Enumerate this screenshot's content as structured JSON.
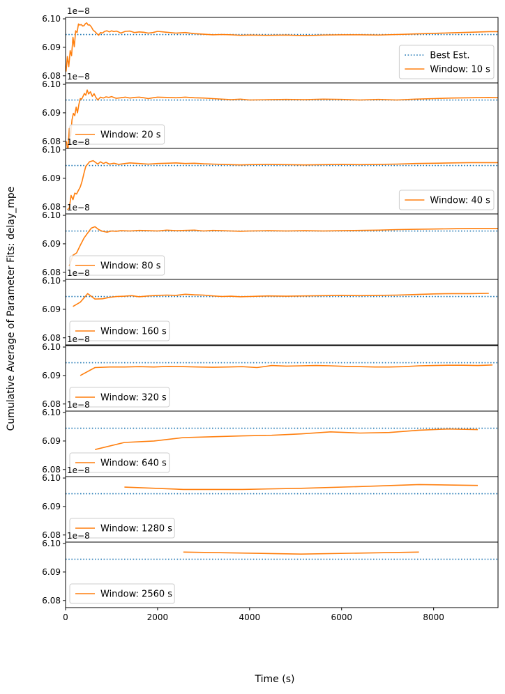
{
  "figure": {
    "ylabel": "Cumulative Average of Parameter Fits: delay_mpe",
    "xlabel": "Time (s)",
    "offset_text": "1e−8",
    "colors": {
      "best": "#1f77b4",
      "window": "#ff7f0e",
      "axes": "#000000"
    }
  },
  "chart_data": {
    "type": "line",
    "xlim": [
      0,
      9400
    ],
    "ylim": [
      6.0775,
      6.1005
    ],
    "y_scale_factor": "1e-8",
    "x_ticks": [
      0,
      2000,
      4000,
      6000,
      8000
    ],
    "x_tick_labels": [
      "0",
      "2000",
      "4000",
      "6000",
      "8000"
    ],
    "y_ticks": [
      6.08,
      6.09,
      6.1
    ],
    "y_tick_labels": [
      "6.08",
      "6.09",
      "6.10"
    ],
    "best_estimate": 6.0945,
    "panels": [
      {
        "legend_loc": "right",
        "legend": [
          {
            "label": "Best Est.",
            "style": "dotted"
          },
          {
            "label": "Window: 10 s",
            "style": "solid"
          }
        ],
        "series": {
          "name": "Window: 10 s",
          "x": [
            10,
            40,
            70,
            100,
            130,
            160,
            190,
            220,
            250,
            280,
            310,
            340,
            370,
            400,
            430,
            460,
            490,
            520,
            560,
            600,
            640,
            680,
            720,
            760,
            800,
            850,
            900,
            950,
            1000,
            1050,
            1100,
            1150,
            1200,
            1300,
            1400,
            1500,
            1600,
            1700,
            1800,
            1900,
            2000,
            2200,
            2400,
            2600,
            2800,
            3000,
            3200,
            3400,
            3600,
            3800,
            4000,
            4400,
            4800,
            5200,
            5600,
            6000,
            6400,
            6800,
            7200,
            7600,
            8000,
            8400,
            8800,
            9200,
            9400
          ],
          "y": [
            6.0815,
            6.0868,
            6.0832,
            6.0888,
            6.0871,
            6.0935,
            6.0902,
            6.0958,
            6.0952,
            6.0982,
            6.0978,
            6.098,
            6.0975,
            6.0976,
            6.0983,
            6.0986,
            6.0978,
            6.0979,
            6.0972,
            6.096,
            6.0955,
            6.0948,
            6.0942,
            6.0952,
            6.095,
            6.0956,
            6.0958,
            6.0954,
            6.0958,
            6.0955,
            6.0957,
            6.0954,
            6.095,
            6.0956,
            6.0957,
            6.0952,
            6.0954,
            6.0953,
            6.095,
            6.0952,
            6.0956,
            6.0953,
            6.095,
            6.0952,
            6.0948,
            6.0946,
            6.0944,
            6.0945,
            6.0944,
            6.0942,
            6.0943,
            6.0942,
            6.0943,
            6.0941,
            6.0943,
            6.0944,
            6.0944,
            6.0943,
            6.0945,
            6.0947,
            6.0949,
            6.0951,
            6.0953,
            6.0955,
            6.0955
          ]
        }
      },
      {
        "legend_loc": "lower left",
        "legend": [
          {
            "label": "Window: 20 s",
            "style": "solid"
          }
        ],
        "series": {
          "name": "Window: 20 s",
          "x": [
            20,
            50,
            80,
            110,
            140,
            170,
            200,
            230,
            260,
            290,
            320,
            350,
            380,
            410,
            440,
            470,
            500,
            540,
            580,
            620,
            660,
            700,
            760,
            820,
            880,
            940,
            1000,
            1100,
            1200,
            1300,
            1400,
            1500,
            1600,
            1700,
            1800,
            1900,
            2000,
            2200,
            2400,
            2600,
            2800,
            3000,
            3200,
            3400,
            3600,
            3800,
            4000,
            4400,
            4800,
            5200,
            5600,
            6000,
            6400,
            6800,
            7200,
            7600,
            8000,
            8400,
            8800,
            9200,
            9400
          ],
          "y": [
            6.08,
            6.076,
            6.0845,
            6.0818,
            6.0875,
            6.0898,
            6.089,
            6.092,
            6.09,
            6.093,
            6.095,
            6.0948,
            6.0958,
            6.0968,
            6.0962,
            6.098,
            6.0966,
            6.0974,
            6.0958,
            6.0967,
            6.0954,
            6.0945,
            6.0955,
            6.0952,
            6.0956,
            6.0954,
            6.0957,
            6.0951,
            6.0953,
            6.0955,
            6.0952,
            6.0954,
            6.0955,
            6.0953,
            6.095,
            6.0953,
            6.0955,
            6.0954,
            6.0953,
            6.0955,
            6.0953,
            6.0952,
            6.095,
            6.0948,
            6.0946,
            6.0948,
            6.0945,
            6.0946,
            6.0947,
            6.0946,
            6.0948,
            6.0947,
            6.0945,
            6.0947,
            6.0945,
            6.0948,
            6.095,
            6.0952,
            6.0953,
            6.0954,
            6.0953
          ]
        }
      },
      {
        "legend_loc": "lower right",
        "legend": [
          {
            "label": "Window: 40 s",
            "style": "solid"
          }
        ],
        "series": {
          "name": "Window: 40 s",
          "x": [
            40,
            80,
            120,
            160,
            200,
            240,
            280,
            320,
            360,
            400,
            440,
            480,
            520,
            560,
            600,
            650,
            700,
            760,
            820,
            880,
            950,
            1050,
            1150,
            1250,
            1400,
            1600,
            1800,
            2000,
            2200,
            2400,
            2600,
            2800,
            3000,
            3200,
            3400,
            3600,
            3800,
            4000,
            4400,
            4800,
            5200,
            5600,
            6000,
            6400,
            6800,
            7200,
            7600,
            8000,
            8400,
            8800,
            9200,
            9400
          ],
          "y": [
            6.079,
            6.0795,
            6.084,
            6.0825,
            6.0848,
            6.0845,
            6.0858,
            6.087,
            6.089,
            6.0918,
            6.0942,
            6.095,
            6.0958,
            6.096,
            6.0962,
            6.0956,
            6.095,
            6.0958,
            6.0952,
            6.0956,
            6.095,
            6.0953,
            6.0949,
            6.0951,
            6.0954,
            6.0952,
            6.095,
            6.0952,
            6.0953,
            6.0954,
            6.0952,
            6.0953,
            6.0951,
            6.095,
            6.0949,
            6.0948,
            6.0947,
            6.0948,
            6.0949,
            6.0948,
            6.0947,
            6.0948,
            6.0949,
            6.0948,
            6.0949,
            6.095,
            6.0952,
            6.0953,
            6.0954,
            6.0955,
            6.0955,
            6.0955
          ]
        }
      },
      {
        "legend_loc": "lower left",
        "legend": [
          {
            "label": "Window: 80 s",
            "style": "solid"
          }
        ],
        "series": {
          "name": "Window: 80 s",
          "x": [
            80,
            160,
            240,
            320,
            400,
            480,
            560,
            640,
            720,
            800,
            900,
            1000,
            1100,
            1200,
            1400,
            1600,
            1800,
            2000,
            2200,
            2400,
            2600,
            2800,
            3000,
            3200,
            3400,
            3600,
            3800,
            4000,
            4400,
            4800,
            5200,
            5600,
            6000,
            6400,
            6800,
            7200,
            7600,
            8000,
            8400,
            8800,
            9200,
            9400
          ],
          "y": [
            6.0822,
            6.086,
            6.0868,
            6.0895,
            6.092,
            6.0938,
            6.0955,
            6.096,
            6.095,
            6.0944,
            6.0941,
            6.0945,
            6.0944,
            6.0946,
            6.0945,
            6.0947,
            6.0946,
            6.0945,
            6.0948,
            6.0946,
            6.0947,
            6.0948,
            6.0945,
            6.0947,
            6.0946,
            6.0945,
            6.0944,
            6.0945,
            6.0946,
            6.0945,
            6.0946,
            6.0945,
            6.0946,
            6.0947,
            6.0948,
            6.095,
            6.0951,
            6.0952,
            6.0953,
            6.0954,
            6.0954,
            6.0954
          ]
        }
      },
      {
        "legend_loc": "lower left",
        "legend": [
          {
            "label": "Window: 160 s",
            "style": "solid"
          }
        ],
        "series": {
          "name": "Window: 160 s",
          "x": [
            160,
            320,
            480,
            640,
            800,
            960,
            1120,
            1280,
            1440,
            1600,
            1800,
            2000,
            2200,
            2400,
            2600,
            2800,
            3000,
            3200,
            3400,
            3600,
            3800,
            4000,
            4200,
            4400,
            4800,
            5200,
            5600,
            6000,
            6400,
            6800,
            7200,
            7600,
            8000,
            8400,
            8800,
            9200
          ],
          "y": [
            6.091,
            6.0925,
            6.0955,
            6.0936,
            6.0937,
            6.0942,
            6.0945,
            6.0946,
            6.0948,
            6.0944,
            6.0947,
            6.0949,
            6.095,
            6.0949,
            6.0953,
            6.0951,
            6.095,
            6.0947,
            6.0945,
            6.0946,
            6.0944,
            6.0945,
            6.0946,
            6.0947,
            6.0946,
            6.0947,
            6.0948,
            6.0949,
            6.0948,
            6.0949,
            6.095,
            6.0952,
            6.0954,
            6.0955,
            6.0955,
            6.0956
          ]
        }
      },
      {
        "legend_loc": "lower left",
        "legend": [
          {
            "label": "Window: 320 s",
            "style": "solid"
          }
        ],
        "series": {
          "name": "Window: 320 s",
          "x": [
            320,
            640,
            960,
            1280,
            1600,
            1920,
            2240,
            2560,
            2880,
            3200,
            3520,
            3840,
            4160,
            4480,
            4800,
            5120,
            5440,
            5760,
            6080,
            6400,
            6720,
            7040,
            7360,
            7680,
            8000,
            8320,
            8640,
            8960,
            9280
          ],
          "y": [
            6.09,
            6.0928,
            6.093,
            6.093,
            6.0931,
            6.093,
            6.0932,
            6.0931,
            6.093,
            6.0929,
            6.093,
            6.0931,
            6.0928,
            6.0935,
            6.0933,
            6.0934,
            6.0935,
            6.0934,
            6.0932,
            6.0931,
            6.093,
            6.093,
            6.0931,
            6.0934,
            6.0935,
            6.0936,
            6.0936,
            6.0935,
            6.0937
          ]
        }
      },
      {
        "legend_loc": "lower left",
        "legend": [
          {
            "label": "Window: 640 s",
            "style": "solid"
          }
        ],
        "series": {
          "name": "Window: 640 s",
          "x": [
            640,
            1280,
            1920,
            2560,
            3200,
            3840,
            4480,
            5120,
            5760,
            6400,
            7040,
            7680,
            8320,
            8960
          ],
          "y": [
            6.087,
            6.0895,
            6.09,
            6.0912,
            6.0915,
            6.0918,
            6.092,
            6.0925,
            6.0932,
            6.0928,
            6.093,
            6.0938,
            6.0942,
            6.094
          ]
        }
      },
      {
        "legend_loc": "lower left",
        "legend": [
          {
            "label": "Window: 1280 s",
            "style": "solid"
          }
        ],
        "series": {
          "name": "Window: 1280 s",
          "x": [
            1280,
            2560,
            3840,
            5120,
            6400,
            7680,
            8960
          ],
          "y": [
            6.0968,
            6.096,
            6.096,
            6.0964,
            6.097,
            6.0977,
            6.0974
          ]
        }
      },
      {
        "legend_loc": "lower left",
        "legend": [
          {
            "label": "Window: 2560 s",
            "style": "solid"
          }
        ],
        "series": {
          "name": "Window: 2560 s",
          "x": [
            2560,
            5120,
            7680
          ],
          "y": [
            6.097,
            6.0963,
            6.097
          ]
        }
      }
    ]
  }
}
